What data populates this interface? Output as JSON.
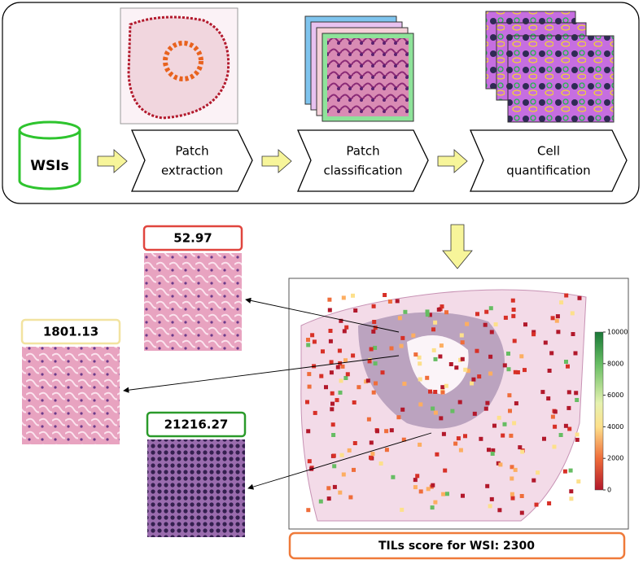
{
  "pipeline": {
    "source": "WSIs",
    "steps": [
      {
        "lines": [
          "Patch",
          "extraction"
        ]
      },
      {
        "lines": [
          "Patch",
          "classification"
        ]
      },
      {
        "lines": [
          "Cell",
          "quantification"
        ]
      }
    ]
  },
  "patches": [
    {
      "score": "52.97"
    },
    {
      "score": "1801.13"
    },
    {
      "score": "21216.27"
    }
  ],
  "colorbar": {
    "ticks": [
      0,
      2000,
      4000,
      6000,
      8000,
      10000
    ]
  },
  "wsi_score": "TILs score for WSI: 2300"
}
